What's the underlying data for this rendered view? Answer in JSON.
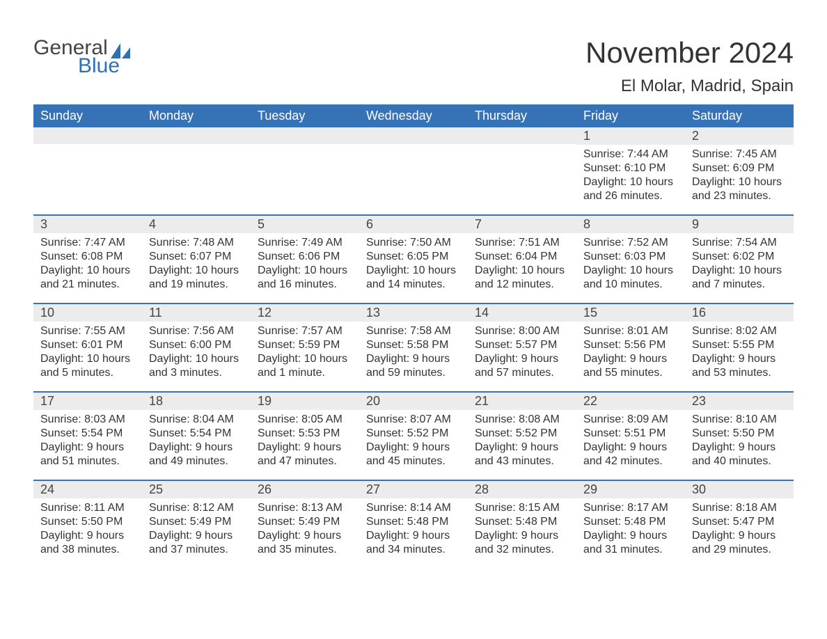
{
  "logo": {
    "word1": "General",
    "word2": "Blue"
  },
  "title": "November 2024",
  "location": "El Molar, Madrid, Spain",
  "theme": {
    "header_bg": "#3673b6",
    "header_text": "#ffffff",
    "daynum_bg": "#ececec",
    "rule_color": "#3673b6",
    "body_text": "#333333",
    "logo_gray": "#444444",
    "logo_blue": "#2f6fb3",
    "page_bg": "#ffffff",
    "title_fontsize": 42,
    "location_fontsize": 24,
    "header_fontsize": 18,
    "cell_fontsize": 16
  },
  "day_headers": [
    "Sunday",
    "Monday",
    "Tuesday",
    "Wednesday",
    "Thursday",
    "Friday",
    "Saturday"
  ],
  "weeks": [
    [
      {},
      {},
      {},
      {},
      {},
      {
        "n": "1",
        "sunrise": "Sunrise: 7:44 AM",
        "sunset": "Sunset: 6:10 PM",
        "daylight": "Daylight: 10 hours and 26 minutes."
      },
      {
        "n": "2",
        "sunrise": "Sunrise: 7:45 AM",
        "sunset": "Sunset: 6:09 PM",
        "daylight": "Daylight: 10 hours and 23 minutes."
      }
    ],
    [
      {
        "n": "3",
        "sunrise": "Sunrise: 7:47 AM",
        "sunset": "Sunset: 6:08 PM",
        "daylight": "Daylight: 10 hours and 21 minutes."
      },
      {
        "n": "4",
        "sunrise": "Sunrise: 7:48 AM",
        "sunset": "Sunset: 6:07 PM",
        "daylight": "Daylight: 10 hours and 19 minutes."
      },
      {
        "n": "5",
        "sunrise": "Sunrise: 7:49 AM",
        "sunset": "Sunset: 6:06 PM",
        "daylight": "Daylight: 10 hours and 16 minutes."
      },
      {
        "n": "6",
        "sunrise": "Sunrise: 7:50 AM",
        "sunset": "Sunset: 6:05 PM",
        "daylight": "Daylight: 10 hours and 14 minutes."
      },
      {
        "n": "7",
        "sunrise": "Sunrise: 7:51 AM",
        "sunset": "Sunset: 6:04 PM",
        "daylight": "Daylight: 10 hours and 12 minutes."
      },
      {
        "n": "8",
        "sunrise": "Sunrise: 7:52 AM",
        "sunset": "Sunset: 6:03 PM",
        "daylight": "Daylight: 10 hours and 10 minutes."
      },
      {
        "n": "9",
        "sunrise": "Sunrise: 7:54 AM",
        "sunset": "Sunset: 6:02 PM",
        "daylight": "Daylight: 10 hours and 7 minutes."
      }
    ],
    [
      {
        "n": "10",
        "sunrise": "Sunrise: 7:55 AM",
        "sunset": "Sunset: 6:01 PM",
        "daylight": "Daylight: 10 hours and 5 minutes."
      },
      {
        "n": "11",
        "sunrise": "Sunrise: 7:56 AM",
        "sunset": "Sunset: 6:00 PM",
        "daylight": "Daylight: 10 hours and 3 minutes."
      },
      {
        "n": "12",
        "sunrise": "Sunrise: 7:57 AM",
        "sunset": "Sunset: 5:59 PM",
        "daylight": "Daylight: 10 hours and 1 minute."
      },
      {
        "n": "13",
        "sunrise": "Sunrise: 7:58 AM",
        "sunset": "Sunset: 5:58 PM",
        "daylight": "Daylight: 9 hours and 59 minutes."
      },
      {
        "n": "14",
        "sunrise": "Sunrise: 8:00 AM",
        "sunset": "Sunset: 5:57 PM",
        "daylight": "Daylight: 9 hours and 57 minutes."
      },
      {
        "n": "15",
        "sunrise": "Sunrise: 8:01 AM",
        "sunset": "Sunset: 5:56 PM",
        "daylight": "Daylight: 9 hours and 55 minutes."
      },
      {
        "n": "16",
        "sunrise": "Sunrise: 8:02 AM",
        "sunset": "Sunset: 5:55 PM",
        "daylight": "Daylight: 9 hours and 53 minutes."
      }
    ],
    [
      {
        "n": "17",
        "sunrise": "Sunrise: 8:03 AM",
        "sunset": "Sunset: 5:54 PM",
        "daylight": "Daylight: 9 hours and 51 minutes."
      },
      {
        "n": "18",
        "sunrise": "Sunrise: 8:04 AM",
        "sunset": "Sunset: 5:54 PM",
        "daylight": "Daylight: 9 hours and 49 minutes."
      },
      {
        "n": "19",
        "sunrise": "Sunrise: 8:05 AM",
        "sunset": "Sunset: 5:53 PM",
        "daylight": "Daylight: 9 hours and 47 minutes."
      },
      {
        "n": "20",
        "sunrise": "Sunrise: 8:07 AM",
        "sunset": "Sunset: 5:52 PM",
        "daylight": "Daylight: 9 hours and 45 minutes."
      },
      {
        "n": "21",
        "sunrise": "Sunrise: 8:08 AM",
        "sunset": "Sunset: 5:52 PM",
        "daylight": "Daylight: 9 hours and 43 minutes."
      },
      {
        "n": "22",
        "sunrise": "Sunrise: 8:09 AM",
        "sunset": "Sunset: 5:51 PM",
        "daylight": "Daylight: 9 hours and 42 minutes."
      },
      {
        "n": "23",
        "sunrise": "Sunrise: 8:10 AM",
        "sunset": "Sunset: 5:50 PM",
        "daylight": "Daylight: 9 hours and 40 minutes."
      }
    ],
    [
      {
        "n": "24",
        "sunrise": "Sunrise: 8:11 AM",
        "sunset": "Sunset: 5:50 PM",
        "daylight": "Daylight: 9 hours and 38 minutes."
      },
      {
        "n": "25",
        "sunrise": "Sunrise: 8:12 AM",
        "sunset": "Sunset: 5:49 PM",
        "daylight": "Daylight: 9 hours and 37 minutes."
      },
      {
        "n": "26",
        "sunrise": "Sunrise: 8:13 AM",
        "sunset": "Sunset: 5:49 PM",
        "daylight": "Daylight: 9 hours and 35 minutes."
      },
      {
        "n": "27",
        "sunrise": "Sunrise: 8:14 AM",
        "sunset": "Sunset: 5:48 PM",
        "daylight": "Daylight: 9 hours and 34 minutes."
      },
      {
        "n": "28",
        "sunrise": "Sunrise: 8:15 AM",
        "sunset": "Sunset: 5:48 PM",
        "daylight": "Daylight: 9 hours and 32 minutes."
      },
      {
        "n": "29",
        "sunrise": "Sunrise: 8:17 AM",
        "sunset": "Sunset: 5:48 PM",
        "daylight": "Daylight: 9 hours and 31 minutes."
      },
      {
        "n": "30",
        "sunrise": "Sunrise: 8:18 AM",
        "sunset": "Sunset: 5:47 PM",
        "daylight": "Daylight: 9 hours and 29 minutes."
      }
    ]
  ]
}
